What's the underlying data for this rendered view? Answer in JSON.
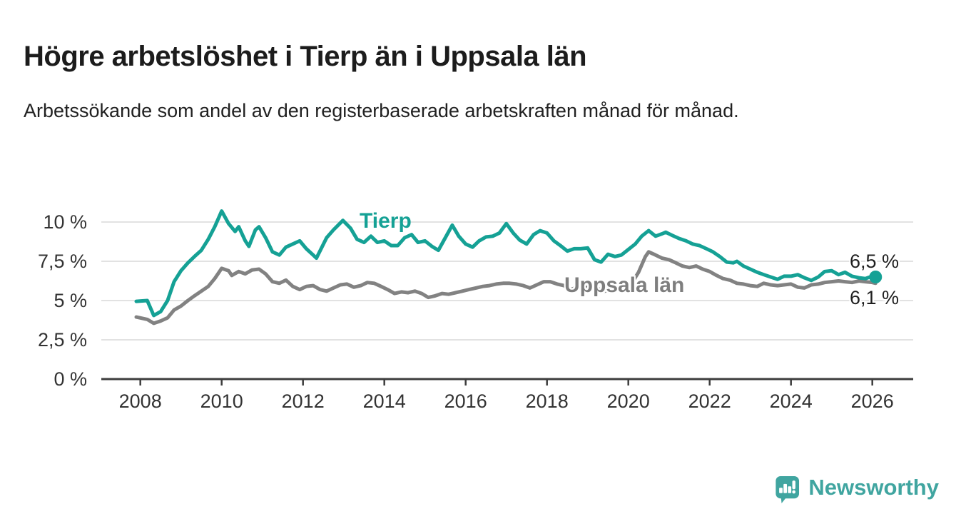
{
  "page": {
    "title": "Högre arbetslöshet i Tierp än i Uppsala län",
    "subtitle": "Arbetssökande som andel av den registerbaserade arbetskraften månad för månad."
  },
  "footer": {
    "brand": "Newsworthy",
    "brand_color": "#40a5a0"
  },
  "chart_data": {
    "type": "line",
    "title": "Högre arbetslöshet i Tierp än i Uppsala län",
    "subtitle": "Arbetssökande som andel av den registerbaserade arbetskraften månad för månad.",
    "unit": "%",
    "grid": true,
    "legend_position": "inline-labels",
    "colors": {
      "grid": "#d9d9d9",
      "axis": "#3d3d3d",
      "axis_text": "#333333"
    },
    "x_axis": {
      "range": [
        2007.1,
        2029.0
      ],
      "ticks": [
        2008,
        2010,
        2012,
        2014,
        2016,
        2018,
        2020,
        2022,
        2024,
        2026
      ]
    },
    "y_axis": {
      "range": [
        0,
        11.5
      ],
      "ticks": [
        {
          "value": 10,
          "label": "10 %"
        },
        {
          "value": 7.5,
          "label": "7,5 %"
        },
        {
          "value": 5,
          "label": "5 %"
        },
        {
          "value": 2.5,
          "label": "2,5 %"
        },
        {
          "value": 0,
          "label": "0 %"
        }
      ]
    },
    "series": [
      {
        "name": "Tierp",
        "color": "#15a195",
        "end_label": "6,5 %",
        "end_value": 6.5,
        "points": [
          [
            2007.9,
            4.95
          ],
          [
            2008.17,
            5.0
          ],
          [
            2008.33,
            4.05
          ],
          [
            2008.5,
            4.3
          ],
          [
            2008.67,
            5.0
          ],
          [
            2008.83,
            6.2
          ],
          [
            2009.0,
            6.9
          ],
          [
            2009.17,
            7.4
          ],
          [
            2009.33,
            7.8
          ],
          [
            2009.5,
            8.2
          ],
          [
            2009.67,
            8.9
          ],
          [
            2009.83,
            9.7
          ],
          [
            2010.0,
            10.7
          ],
          [
            2010.17,
            9.9
          ],
          [
            2010.33,
            9.4
          ],
          [
            2010.42,
            9.7
          ],
          [
            2010.58,
            8.8
          ],
          [
            2010.67,
            8.45
          ],
          [
            2010.83,
            9.5
          ],
          [
            2010.92,
            9.7
          ],
          [
            2011.08,
            9.0
          ],
          [
            2011.25,
            8.1
          ],
          [
            2011.42,
            7.9
          ],
          [
            2011.58,
            8.4
          ],
          [
            2011.75,
            8.6
          ],
          [
            2011.92,
            8.8
          ],
          [
            2012.08,
            8.3
          ],
          [
            2012.25,
            7.9
          ],
          [
            2012.33,
            7.7
          ],
          [
            2012.58,
            9.0
          ],
          [
            2012.75,
            9.5
          ],
          [
            2012.98,
            10.1
          ],
          [
            2013.17,
            9.6
          ],
          [
            2013.33,
            8.9
          ],
          [
            2013.5,
            8.7
          ],
          [
            2013.67,
            9.1
          ],
          [
            2013.83,
            8.7
          ],
          [
            2014.0,
            8.8
          ],
          [
            2014.17,
            8.5
          ],
          [
            2014.33,
            8.5
          ],
          [
            2014.5,
            9.0
          ],
          [
            2014.67,
            9.2
          ],
          [
            2014.83,
            8.7
          ],
          [
            2015.0,
            8.8
          ],
          [
            2015.17,
            8.45
          ],
          [
            2015.33,
            8.2
          ],
          [
            2015.5,
            9.0
          ],
          [
            2015.67,
            9.8
          ],
          [
            2015.83,
            9.1
          ],
          [
            2016.0,
            8.6
          ],
          [
            2016.17,
            8.4
          ],
          [
            2016.33,
            8.8
          ],
          [
            2016.5,
            9.05
          ],
          [
            2016.67,
            9.1
          ],
          [
            2016.83,
            9.3
          ],
          [
            2017.0,
            9.9
          ],
          [
            2017.17,
            9.3
          ],
          [
            2017.33,
            8.85
          ],
          [
            2017.5,
            8.6
          ],
          [
            2017.67,
            9.2
          ],
          [
            2017.83,
            9.45
          ],
          [
            2018.0,
            9.3
          ],
          [
            2018.17,
            8.8
          ],
          [
            2018.33,
            8.5
          ],
          [
            2018.5,
            8.15
          ],
          [
            2018.67,
            8.3
          ],
          [
            2018.83,
            8.3
          ],
          [
            2019.0,
            8.35
          ],
          [
            2019.17,
            7.6
          ],
          [
            2019.33,
            7.45
          ],
          [
            2019.5,
            7.95
          ],
          [
            2019.67,
            7.8
          ],
          [
            2019.83,
            7.9
          ],
          [
            2020.0,
            8.25
          ],
          [
            2020.17,
            8.6
          ],
          [
            2020.33,
            9.1
          ],
          [
            2020.5,
            9.45
          ],
          [
            2020.67,
            9.1
          ],
          [
            2020.83,
            9.25
          ],
          [
            2020.92,
            9.35
          ],
          [
            2021.08,
            9.15
          ],
          [
            2021.25,
            8.95
          ],
          [
            2021.42,
            8.8
          ],
          [
            2021.58,
            8.6
          ],
          [
            2021.75,
            8.5
          ],
          [
            2021.92,
            8.3
          ],
          [
            2022.08,
            8.1
          ],
          [
            2022.25,
            7.8
          ],
          [
            2022.42,
            7.45
          ],
          [
            2022.58,
            7.4
          ],
          [
            2022.67,
            7.5
          ],
          [
            2022.83,
            7.2
          ],
          [
            2023.0,
            7.0
          ],
          [
            2023.17,
            6.8
          ],
          [
            2023.33,
            6.65
          ],
          [
            2023.5,
            6.5
          ],
          [
            2023.67,
            6.35
          ],
          [
            2023.83,
            6.55
          ],
          [
            2024.0,
            6.55
          ],
          [
            2024.17,
            6.65
          ],
          [
            2024.33,
            6.45
          ],
          [
            2024.5,
            6.28
          ],
          [
            2024.67,
            6.5
          ],
          [
            2024.83,
            6.85
          ],
          [
            2025.0,
            6.9
          ],
          [
            2025.17,
            6.65
          ],
          [
            2025.33,
            6.8
          ],
          [
            2025.5,
            6.55
          ],
          [
            2025.67,
            6.45
          ],
          [
            2025.83,
            6.4
          ],
          [
            2026.0,
            6.55
          ],
          [
            2026.08,
            6.5
          ]
        ]
      },
      {
        "name": "Uppsala län",
        "color": "#828282",
        "label_color": "#7e7e7e",
        "end_label": "6,1 %",
        "end_value": 6.1,
        "points": [
          [
            2007.9,
            3.95
          ],
          [
            2008.17,
            3.8
          ],
          [
            2008.33,
            3.55
          ],
          [
            2008.5,
            3.7
          ],
          [
            2008.67,
            3.9
          ],
          [
            2008.83,
            4.4
          ],
          [
            2009.0,
            4.65
          ],
          [
            2009.17,
            5.0
          ],
          [
            2009.33,
            5.3
          ],
          [
            2009.5,
            5.6
          ],
          [
            2009.67,
            5.9
          ],
          [
            2009.83,
            6.4
          ],
          [
            2010.0,
            7.05
          ],
          [
            2010.17,
            6.9
          ],
          [
            2010.25,
            6.6
          ],
          [
            2010.42,
            6.85
          ],
          [
            2010.58,
            6.7
          ],
          [
            2010.75,
            6.95
          ],
          [
            2010.92,
            7.0
          ],
          [
            2011.08,
            6.7
          ],
          [
            2011.25,
            6.2
          ],
          [
            2011.42,
            6.1
          ],
          [
            2011.58,
            6.3
          ],
          [
            2011.75,
            5.9
          ],
          [
            2011.92,
            5.7
          ],
          [
            2012.08,
            5.9
          ],
          [
            2012.25,
            5.95
          ],
          [
            2012.42,
            5.7
          ],
          [
            2012.58,
            5.6
          ],
          [
            2012.75,
            5.8
          ],
          [
            2012.92,
            6.0
          ],
          [
            2013.08,
            6.05
          ],
          [
            2013.25,
            5.85
          ],
          [
            2013.42,
            5.95
          ],
          [
            2013.58,
            6.15
          ],
          [
            2013.75,
            6.1
          ],
          [
            2013.92,
            5.9
          ],
          [
            2014.08,
            5.7
          ],
          [
            2014.25,
            5.45
          ],
          [
            2014.42,
            5.55
          ],
          [
            2014.58,
            5.5
          ],
          [
            2014.75,
            5.6
          ],
          [
            2014.92,
            5.45
          ],
          [
            2015.08,
            5.2
          ],
          [
            2015.25,
            5.3
          ],
          [
            2015.42,
            5.45
          ],
          [
            2015.58,
            5.4
          ],
          [
            2015.75,
            5.5
          ],
          [
            2015.92,
            5.6
          ],
          [
            2016.08,
            5.7
          ],
          [
            2016.25,
            5.8
          ],
          [
            2016.42,
            5.9
          ],
          [
            2016.58,
            5.95
          ],
          [
            2016.75,
            6.05
          ],
          [
            2016.92,
            6.1
          ],
          [
            2017.08,
            6.1
          ],
          [
            2017.25,
            6.05
          ],
          [
            2017.42,
            5.95
          ],
          [
            2017.58,
            5.8
          ],
          [
            2017.75,
            6.0
          ],
          [
            2017.92,
            6.2
          ],
          [
            2018.08,
            6.2
          ],
          [
            2018.25,
            6.05
          ],
          [
            2018.42,
            5.95
          ],
          [
            2018.58,
            5.7
          ],
          [
            2018.75,
            5.85
          ],
          [
            2018.92,
            5.8
          ],
          [
            2019.08,
            5.9
          ],
          [
            2019.25,
            5.75
          ],
          [
            2019.42,
            5.6
          ],
          [
            2019.58,
            5.65
          ],
          [
            2019.75,
            5.7
          ],
          [
            2019.92,
            5.85
          ],
          [
            2020.08,
            6.1
          ],
          [
            2020.25,
            6.8
          ],
          [
            2020.42,
            7.8
          ],
          [
            2020.5,
            8.1
          ],
          [
            2020.67,
            7.9
          ],
          [
            2020.83,
            7.7
          ],
          [
            2021.0,
            7.6
          ],
          [
            2021.17,
            7.4
          ],
          [
            2021.33,
            7.2
          ],
          [
            2021.5,
            7.1
          ],
          [
            2021.67,
            7.2
          ],
          [
            2021.83,
            7.0
          ],
          [
            2022.0,
            6.85
          ],
          [
            2022.17,
            6.6
          ],
          [
            2022.33,
            6.4
          ],
          [
            2022.5,
            6.3
          ],
          [
            2022.67,
            6.1
          ],
          [
            2022.83,
            6.05
          ],
          [
            2023.0,
            5.95
          ],
          [
            2023.17,
            5.9
          ],
          [
            2023.33,
            6.1
          ],
          [
            2023.5,
            6.0
          ],
          [
            2023.67,
            5.95
          ],
          [
            2023.83,
            6.0
          ],
          [
            2024.0,
            6.05
          ],
          [
            2024.17,
            5.85
          ],
          [
            2024.33,
            5.8
          ],
          [
            2024.5,
            6.0
          ],
          [
            2024.67,
            6.05
          ],
          [
            2024.83,
            6.15
          ],
          [
            2025.0,
            6.2
          ],
          [
            2025.17,
            6.25
          ],
          [
            2025.33,
            6.2
          ],
          [
            2025.5,
            6.15
          ],
          [
            2025.67,
            6.25
          ],
          [
            2025.83,
            6.2
          ],
          [
            2026.0,
            6.15
          ],
          [
            2026.08,
            6.1
          ]
        ]
      }
    ]
  }
}
